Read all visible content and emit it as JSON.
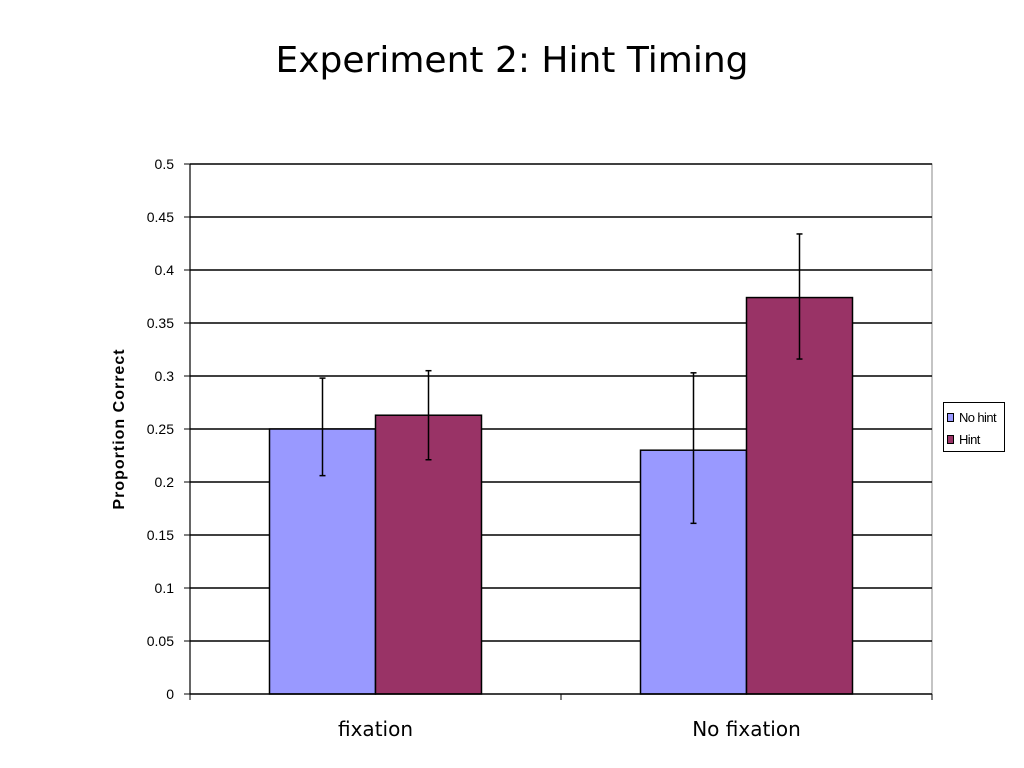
{
  "slide": {
    "title": "Experiment 2: Hint Timing"
  },
  "colors": {
    "no_hint": "#9999ff",
    "hint": "#993366",
    "grid": "#000000"
  },
  "chart_data": {
    "type": "bar",
    "title": "",
    "xlabel": "",
    "ylabel": "Proportion Correct",
    "categories": [
      "fixation",
      "No fixation"
    ],
    "ylim": [
      0,
      0.5
    ],
    "yticks": [
      "0",
      "0.05",
      "0.1",
      "0.15",
      "0.2",
      "0.25",
      "0.3",
      "0.35",
      "0.4",
      "0.45",
      "0.5"
    ],
    "grid": true,
    "legend_position": "right",
    "series": [
      {
        "name": "No hint",
        "values": [
          0.25,
          0.23
        ],
        "error_low": [
          0.206,
          0.161
        ],
        "error_high": [
          0.298,
          0.303
        ]
      },
      {
        "name": "Hint",
        "values": [
          0.263,
          0.374
        ],
        "error_low": [
          0.221,
          0.316
        ],
        "error_high": [
          0.305,
          0.434
        ]
      }
    ]
  }
}
